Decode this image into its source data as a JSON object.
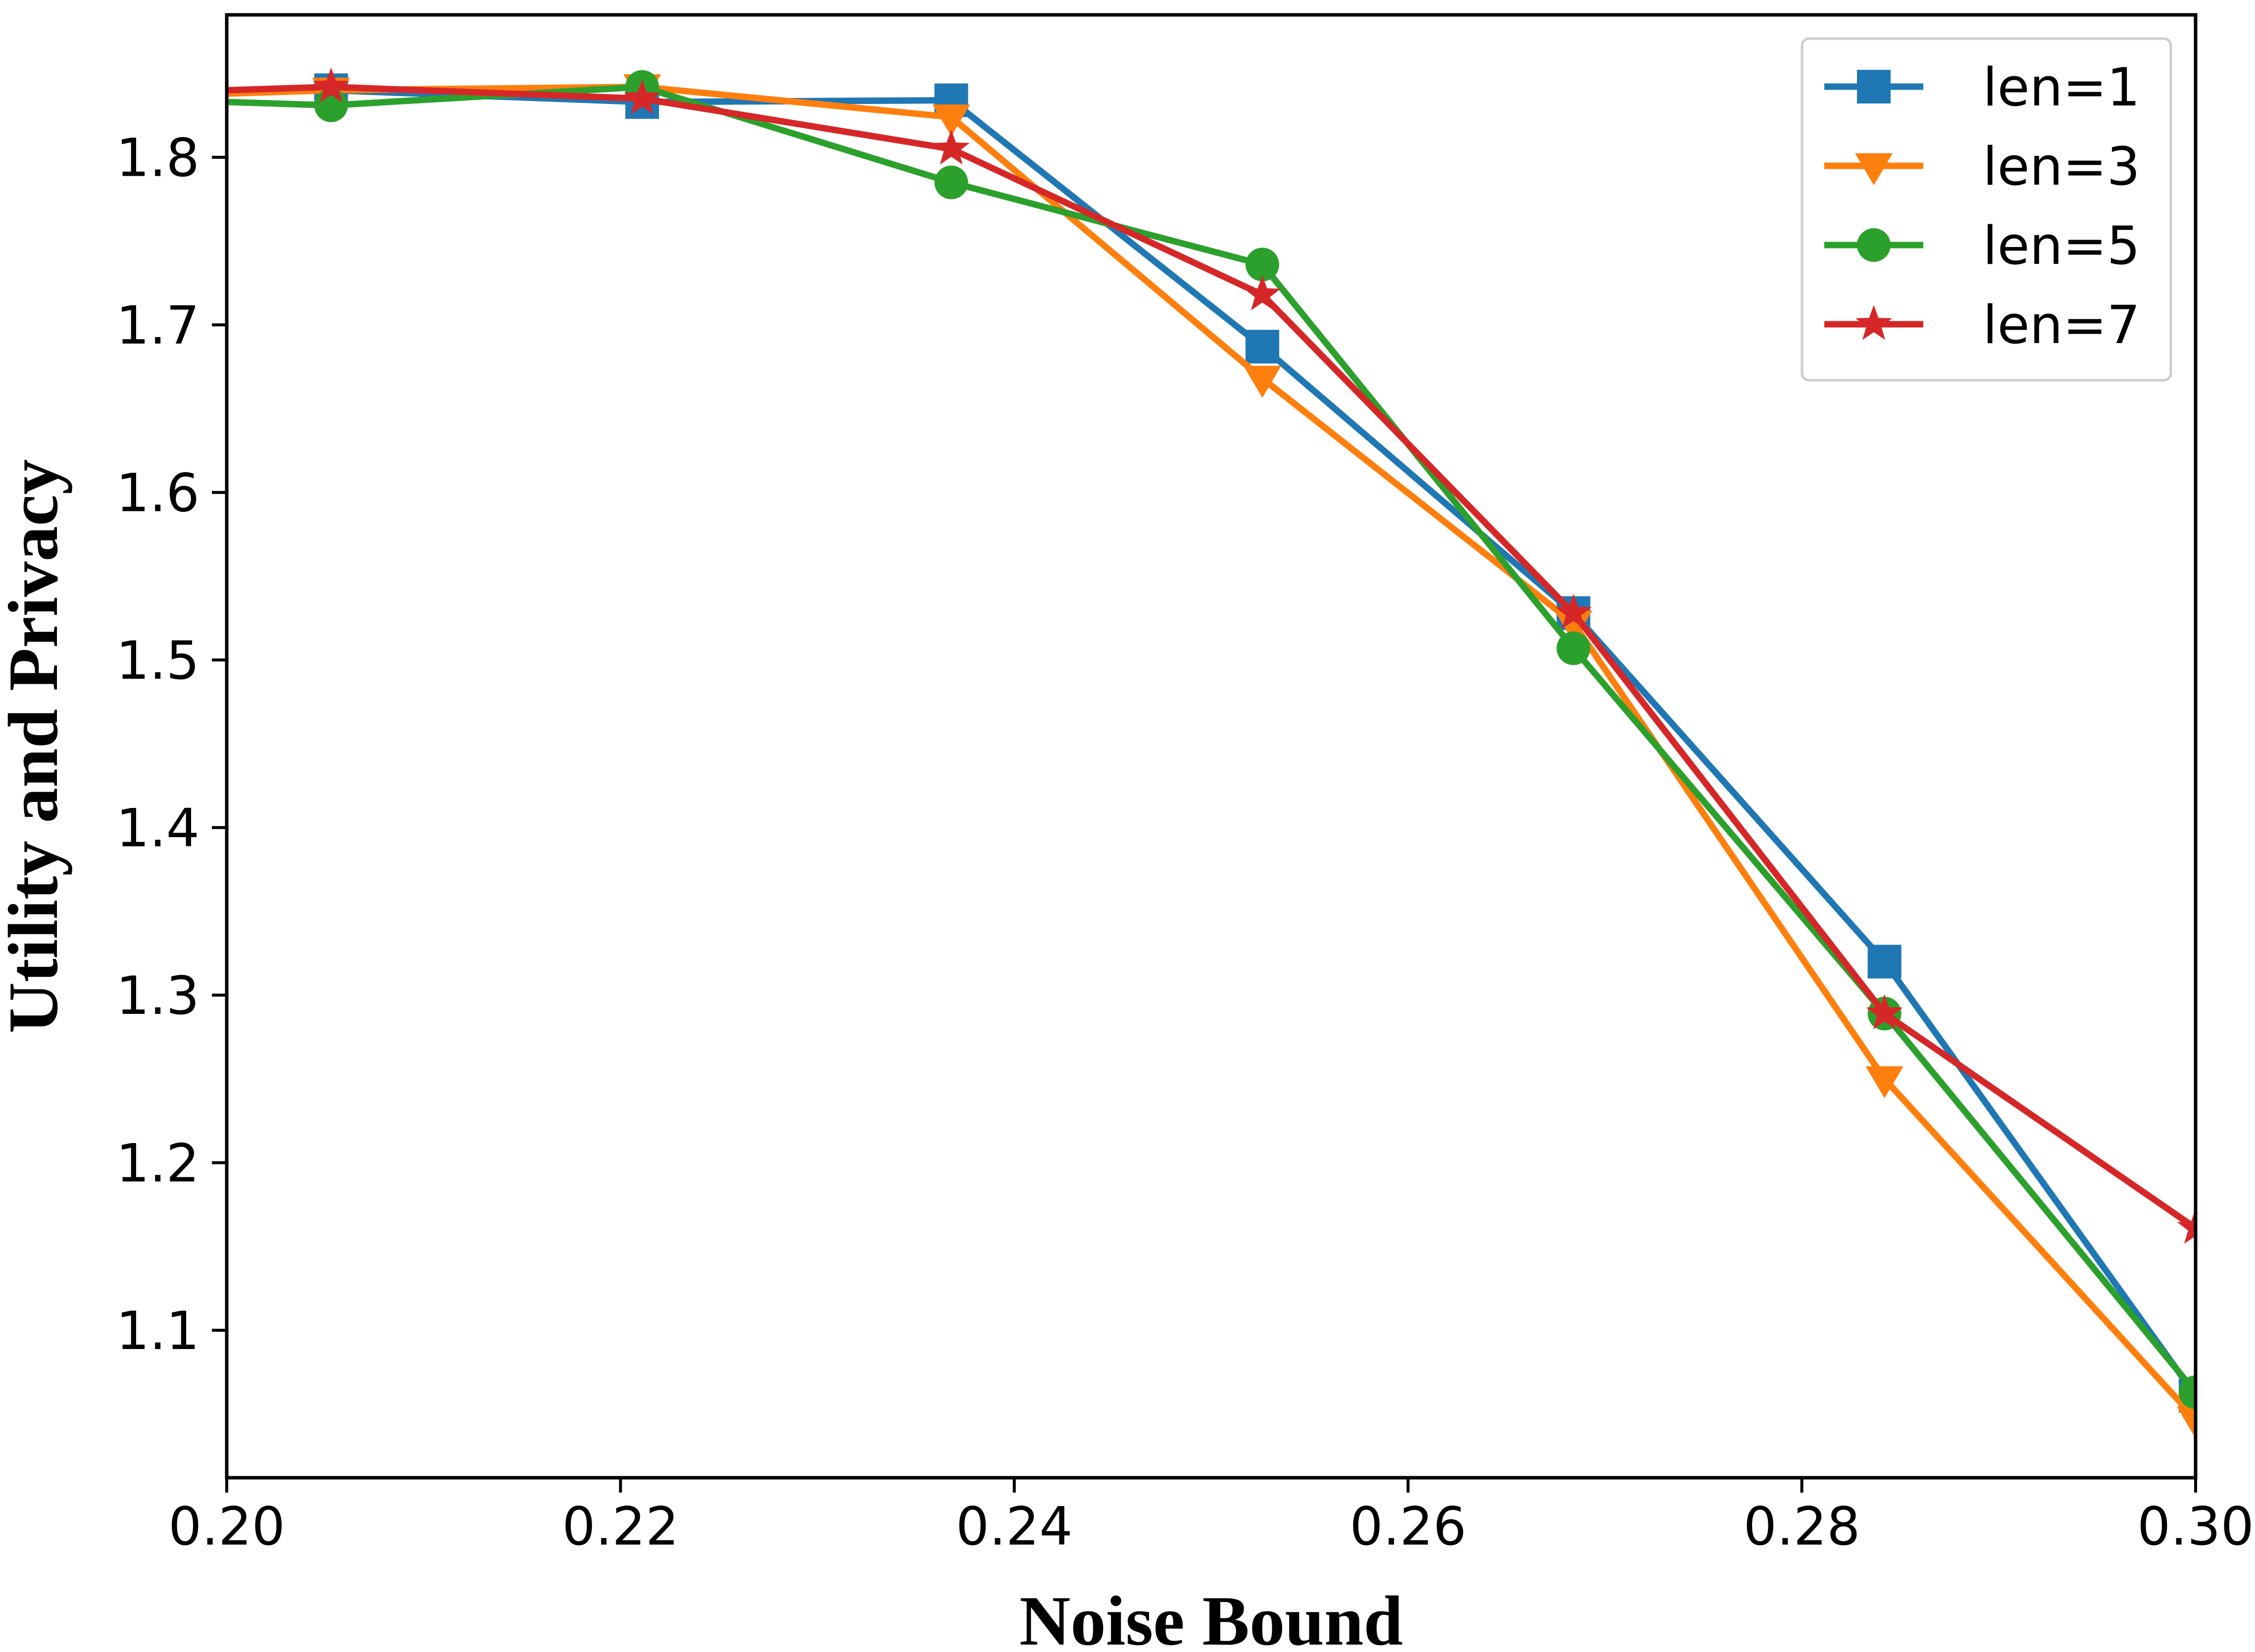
{
  "chart_data": {
    "type": "line",
    "title": "",
    "xlabel": "Noise Bound",
    "ylabel": "Utility and Privacy",
    "xlim": [
      0.2,
      0.3
    ],
    "ylim": [
      1.012,
      1.885
    ],
    "xticks": [
      0.2,
      0.22,
      0.24,
      0.26,
      0.28,
      0.3
    ],
    "xtick_labels": [
      "0.20",
      "0.22",
      "0.24",
      "0.26",
      "0.28",
      "0.30"
    ],
    "yticks": [
      1.1,
      1.2,
      1.3,
      1.4,
      1.5,
      1.6,
      1.7,
      1.8
    ],
    "ytick_labels": [
      "1.1",
      "1.2",
      "1.3",
      "1.4",
      "1.5",
      "1.6",
      "1.7",
      "1.8"
    ],
    "grid": false,
    "legend_position": "top-right",
    "x": [
      0.2,
      0.2053,
      0.2211,
      0.2368,
      0.2526,
      0.2684,
      0.2842,
      0.3
    ],
    "series": [
      {
        "name": "len=1",
        "color": "#1f77b4",
        "marker": "square",
        "values": [
          1.84,
          1.84,
          1.833,
          1.834,
          1.687,
          1.528,
          1.32,
          1.061
        ]
      },
      {
        "name": "len=3",
        "color": "#ff7f0e",
        "marker": "triangle-down",
        "values": [
          1.838,
          1.84,
          1.842,
          1.824,
          1.668,
          1.522,
          1.25,
          1.047
        ]
      },
      {
        "name": "len=5",
        "color": "#2ca02c",
        "marker": "circle",
        "values": [
          1.833,
          1.831,
          1.842,
          1.785,
          1.736,
          1.507,
          1.289,
          1.063
        ]
      },
      {
        "name": "len=7",
        "color": "#d62728",
        "marker": "star",
        "values": [
          1.84,
          1.842,
          1.835,
          1.805,
          1.718,
          1.528,
          1.289,
          1.161
        ]
      }
    ]
  }
}
